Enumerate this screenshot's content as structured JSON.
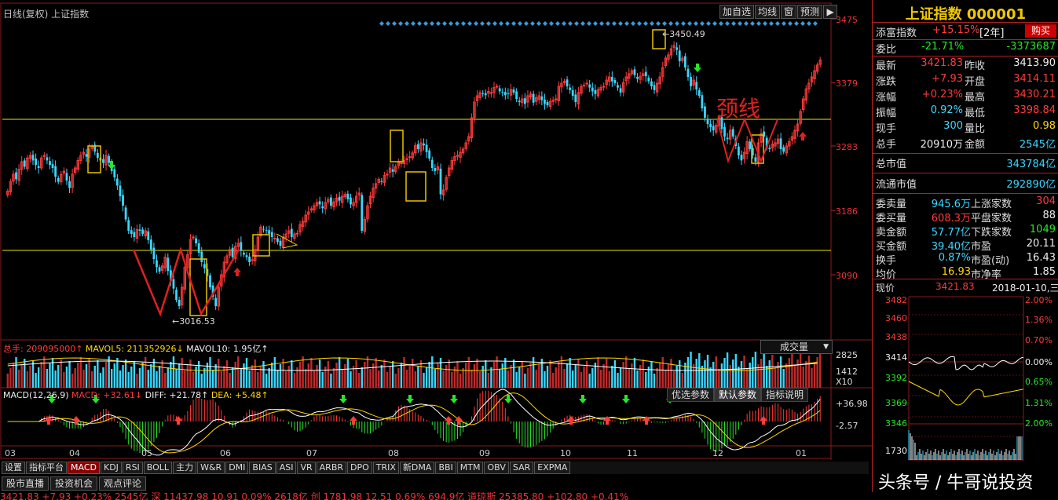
{
  "chart_header": {
    "title": "日线(复权) 上证指数"
  },
  "toolbar": {
    "add_fav": "加自选",
    "ma": "均线",
    "window": "窗",
    "forecast": "预测",
    "arrow": "▶"
  },
  "price_axis": {
    "labels": [
      "3475",
      "3379",
      "3283",
      "3186",
      "3090"
    ]
  },
  "annotations": {
    "high": "3450.49",
    "low": "3016.53",
    "neckline": "颈线"
  },
  "volume": {
    "total": "总手: 209095000↑",
    "mavol5": "MAVOL5: 211352926↓",
    "mavol10": "MAVOL10: 1.95亿↑",
    "axis": [
      "2825",
      "1412",
      "X10"
    ],
    "selector": "成交量",
    "selector_arrow": "▼"
  },
  "macd": {
    "label": "MACD(12,26,9)",
    "macd": "MACD: +32.61↓",
    "diff": "DIFF: +21.78↑",
    "dea": "DEA: +5.48↑",
    "axis": [
      "+36.98",
      "-2.57"
    ],
    "buttons": [
      "优选参数",
      "默认参数",
      "指标说明"
    ]
  },
  "months": [
    "03",
    "04",
    "05",
    "06",
    "07",
    "08",
    "09",
    "10",
    "11",
    "12",
    "01"
  ],
  "tabs": [
    "设置",
    "指标平台",
    "MACD",
    "KDJ",
    "RSI",
    "BOLL",
    "主力",
    "W&R",
    "DMI",
    "BIAS",
    "ASI",
    "VR",
    "ARBR",
    "DPO",
    "TRIX",
    "新DMA",
    "BBI",
    "MTM",
    "OBV",
    "SAR",
    "EXPMA"
  ],
  "tabs2": [
    "股市直播",
    "投资机会",
    "观点评论"
  ],
  "ticker": "3421.83   +7.93   +0.23%   2545亿 深   11437.98   10.91   0.09%   2618亿 创   1781.98   12.51   0.69%   694.9亿 道琼斯   25385.80   +102.80   +0.41%",
  "watermark": "头条号 / 牛哥说投资",
  "right_panel": {
    "title": "上证指数 000001",
    "tianfu": {
      "label": "添富指数",
      "value": "+15.15%",
      "period": "[2年]",
      "buy": "购买"
    },
    "weibi": {
      "label": "委比",
      "value": "-21.71%",
      "diff": "-3373687"
    },
    "quotes": [
      {
        "l1": "最新",
        "v1": "3421.83",
        "l2": "昨收",
        "v2": "3413.90",
        "c1": "red",
        "c2": "wht"
      },
      {
        "l1": "涨跌",
        "v1": "+7.93",
        "l2": "开盘",
        "v2": "3414.11",
        "c1": "red",
        "c2": "red"
      },
      {
        "l1": "涨幅",
        "v1": "+0.23%",
        "l2": "最高",
        "v2": "3430.21",
        "c1": "red",
        "c2": "red"
      },
      {
        "l1": "振幅",
        "v1": "0.92%",
        "l2": "最低",
        "v2": "3398.84",
        "c1": "cyn",
        "c2": "red"
      },
      {
        "l1": "现手",
        "v1": "300",
        "l2": "量比",
        "v2": "0.98",
        "c1": "cyn",
        "c2": "yel"
      },
      {
        "l1": "总手",
        "v1": "20910万",
        "l2": "金额",
        "v2": "2545亿",
        "c1": "wht",
        "c2": "cyn"
      }
    ],
    "market_value": [
      {
        "label": "总市值",
        "value": "343784亿"
      },
      {
        "label": "流通市值",
        "value": "292890亿"
      }
    ],
    "stats": [
      {
        "l1": "委卖量",
        "v1": "945.6万",
        "l2": "上涨家数",
        "v2": "304",
        "c1": "cyn",
        "c2": "red"
      },
      {
        "l1": "委买量",
        "v1": "608.3万",
        "l2": "平盘家数",
        "v2": "88",
        "c1": "red",
        "c2": "wht"
      },
      {
        "l1": "卖金额",
        "v1": "57.77亿",
        "l2": "下跌家数",
        "v2": "1049",
        "c1": "cyn",
        "c2": "grn"
      },
      {
        "l1": "买金额",
        "v1": "39.40亿",
        "l2": "市盈",
        "v2": "20.11",
        "c1": "cyn",
        "c2": "wht"
      },
      {
        "l1": "换手",
        "v1": "0.87%",
        "l2": "市盈(动)",
        "v2": "16.43",
        "c1": "cyn",
        "c2": "wht"
      },
      {
        "l1": "均价",
        "v1": "16.93",
        "l2": "市净率",
        "v2": "1.85",
        "c1": "yel",
        "c2": "wht"
      }
    ],
    "mini": {
      "label": "现价",
      "price": "3421.83",
      "date": "2018-01-10,三",
      "left_axis": [
        "3482",
        "3460",
        "3438",
        "3414",
        "3392",
        "3369",
        "3346",
        "1730"
      ],
      "right_axis": [
        "2.00%",
        "1.36%",
        "0.70%",
        "0.00%",
        "0.65%",
        "1.31%",
        "2.00%"
      ]
    }
  },
  "colors": {
    "up": "#ff3b3b",
    "down": "#3ad7ff",
    "neckline": "#e8e800",
    "drawing": "#e02020",
    "panel_border": "#b22222"
  },
  "chart_data": {
    "type": "candlestick",
    "symbol": "上证指数",
    "ylim": [
      2990,
      3490
    ],
    "months": [
      "03",
      "04",
      "05",
      "06",
      "07",
      "08",
      "09",
      "10",
      "11",
      "12",
      "01"
    ],
    "close": [
      3213,
      3228,
      3240,
      3232,
      3248,
      3260,
      3252,
      3266,
      3270,
      3262,
      3255,
      3250,
      3266,
      3270,
      3262,
      3255,
      3250,
      3236,
      3228,
      3240,
      3245,
      3230,
      3218,
      3240,
      3250,
      3262,
      3270,
      3275,
      3268,
      3280,
      3284,
      3276,
      3266,
      3262,
      3258,
      3270,
      3258,
      3245,
      3235,
      3222,
      3205,
      3190,
      3168,
      3150,
      3145,
      3140,
      3152,
      3150,
      3145,
      3150,
      3135,
      3120,
      3105,
      3092,
      3085,
      3094,
      3108,
      3086,
      3070,
      3058,
      3040,
      3030,
      3060,
      3092,
      3112,
      3136,
      3140,
      3130,
      3115,
      3100,
      3090,
      3078,
      3060,
      3045,
      3030,
      3060,
      3080,
      3100,
      3110,
      3120,
      3108,
      3125,
      3130,
      3118,
      3112,
      3108,
      3100,
      3104,
      3120,
      3140,
      3156,
      3152,
      3150,
      3145,
      3140,
      3138,
      3132,
      3126,
      3140,
      3145,
      3150,
      3140,
      3145,
      3146,
      3160,
      3165,
      3175,
      3180,
      3185,
      3190,
      3195,
      3192,
      3186,
      3195,
      3200,
      3190,
      3196,
      3202,
      3198,
      3205,
      3208,
      3200,
      3192,
      3195,
      3205,
      3210,
      3150,
      3168,
      3190,
      3205,
      3218,
      3225,
      3232,
      3228,
      3238,
      3240,
      3250,
      3244,
      3252,
      3260,
      3258,
      3262,
      3265,
      3268,
      3274,
      3286,
      3280,
      3290,
      3286,
      3275,
      3265,
      3250,
      3245,
      3252,
      3208,
      3215,
      3235,
      3250,
      3262,
      3268,
      3270,
      3275,
      3280,
      3290,
      3300,
      3330,
      3355,
      3365,
      3370,
      3368,
      3366,
      3372,
      3370,
      3378,
      3380,
      3372,
      3370,
      3366,
      3368,
      3375,
      3370,
      3360,
      3355,
      3360,
      3352,
      3365,
      3368,
      3354,
      3362,
      3365,
      3358,
      3352,
      3350,
      3356,
      3358,
      3360,
      3380,
      3385,
      3388,
      3380,
      3374,
      3365,
      3355,
      3370,
      3380,
      3382,
      3385,
      3378,
      3372,
      3368,
      3375,
      3378,
      3380,
      3390,
      3395,
      3388,
      3385,
      3378,
      3370,
      3386,
      3395,
      3400,
      3405,
      3398,
      3392,
      3396,
      3400,
      3396,
      3388,
      3380,
      3374,
      3385,
      3395,
      3410,
      3425,
      3430,
      3440,
      3445,
      3438,
      3420,
      3425,
      3410,
      3395,
      3380,
      3390,
      3375,
      3365,
      3345,
      3330,
      3320,
      3315,
      3310,
      3318,
      3330,
      3312,
      3300,
      3296,
      3310,
      3300,
      3285,
      3270,
      3262,
      3275,
      3292,
      3280,
      3270,
      3260,
      3290,
      3305,
      3300,
      3282,
      3280,
      3288,
      3290,
      3296,
      3280,
      3276,
      3285,
      3292,
      3300,
      3310,
      3320,
      3340,
      3360,
      3376,
      3385,
      3395,
      3405,
      3414,
      3422
    ]
  }
}
